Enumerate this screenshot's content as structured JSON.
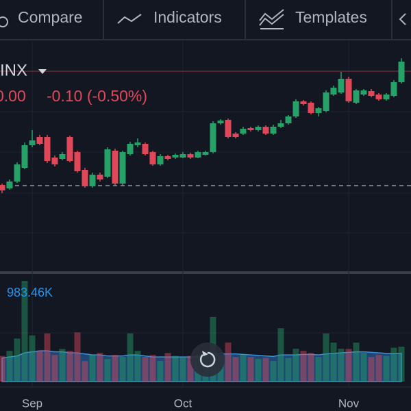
{
  "toolbar": {
    "items": [
      "Compare",
      "Indicators",
      "Templates"
    ]
  },
  "chart_data": {
    "type": "candlestick",
    "symbol": "INX",
    "legend_value": "0.00",
    "legend_change": "-0.10 (-0.50%)",
    "categories": [
      null,
      null,
      null,
      null,
      "Sep",
      null,
      null,
      null,
      null,
      null,
      null,
      null,
      null,
      null,
      null,
      null,
      null,
      null,
      null,
      null,
      null,
      null,
      null,
      null,
      "Oct",
      null,
      null,
      null,
      null,
      null,
      null,
      null,
      null,
      null,
      null,
      null,
      null,
      null,
      null,
      null,
      null,
      null,
      null,
      null,
      null,
      null,
      "Nov",
      null,
      null,
      null,
      null,
      null,
      null,
      null
    ],
    "open": [
      5.0,
      4.5,
      5.5,
      7.5,
      10.8,
      12.0,
      12.0,
      9.0,
      8.8,
      12.0,
      9.8,
      7.2,
      4.8,
      6.5,
      6.2,
      10.0,
      5.2,
      9.5,
      10.8,
      11.0,
      9.8,
      8.0,
      9.2,
      9.0,
      9.0,
      9.5,
      9.0,
      9.4,
      9.8,
      14.0,
      14.5,
      12.5,
      12.5,
      13.3,
      13.0,
      13.5,
      12.5,
      13.5,
      14.0,
      15.0,
      17.2,
      17.0,
      15.5,
      15.8,
      18.2,
      18.5,
      20.5,
      17.0,
      18.2,
      18.7,
      18.2,
      17.5,
      18.0,
      20.0
    ],
    "high": [
      5.2,
      5.8,
      8.3,
      11.2,
      13.0,
      12.3,
      12.3,
      9.3,
      9.8,
      12.2,
      10.0,
      7.5,
      6.8,
      6.8,
      10.5,
      10.3,
      10.0,
      11.3,
      11.8,
      11.2,
      10.0,
      9.5,
      9.4,
      9.6,
      9.8,
      9.7,
      10.0,
      10.0,
      14.3,
      14.6,
      14.7,
      12.7,
      13.5,
      13.5,
      13.7,
      13.7,
      13.8,
      14.5,
      15.2,
      17.5,
      17.4,
      17.2,
      16.4,
      18.8,
      19.5,
      21.5,
      20.8,
      19.0,
      19.0,
      19.0,
      18.4,
      18.4,
      20.3,
      23.5
    ],
    "low": [
      3.8,
      4.3,
      5.3,
      7.3,
      10.5,
      10.8,
      8.2,
      7.7,
      8.6,
      8.3,
      6.8,
      4.6,
      4.6,
      5.5,
      6.0,
      5.0,
      5.0,
      9.3,
      10.5,
      9.3,
      7.8,
      7.8,
      8.6,
      8.8,
      8.9,
      8.8,
      8.9,
      9.3,
      9.6,
      13.8,
      11.8,
      11.8,
      12.3,
      12.8,
      12.8,
      12.3,
      12.3,
      13.3,
      13.8,
      14.8,
      16.6,
      15.3,
      15.0,
      15.6,
      18.0,
      18.3,
      17.0,
      16.8,
      18.0,
      17.8,
      17.3,
      17.3,
      17.8,
      19.8
    ],
    "close": [
      4.2,
      5.5,
      8.0,
      10.8,
      11.5,
      11.0,
      8.5,
      8.0,
      9.5,
      8.5,
      7.0,
      4.8,
      6.5,
      5.8,
      10.2,
      5.2,
      9.8,
      11.0,
      11.2,
      9.5,
      8.0,
      9.2,
      8.8,
      9.4,
      9.5,
      9.0,
      9.8,
      9.8,
      14.0,
      14.4,
      12.0,
      12.0,
      13.2,
      13.0,
      13.5,
      12.5,
      13.5,
      14.0,
      15.0,
      17.2,
      16.8,
      15.5,
      16.2,
      18.5,
      19.2,
      20.5,
      17.2,
      18.8,
      18.8,
      18.0,
      17.5,
      18.2,
      20.0,
      23.0
    ],
    "ylim": [
      0,
      24
    ],
    "price_line": 21.6,
    "reference_line": 4.9,
    "up_color": "#26a269",
    "down_color": "#e0485a",
    "volume": [
      250,
      300,
      420,
      983.46,
      450,
      300,
      470,
      260,
      320,
      300,
      480,
      200,
      260,
      280,
      220,
      260,
      240,
      470,
      300,
      240,
      260,
      200,
      280,
      250,
      240,
      250,
      260,
      300,
      630,
      250,
      380,
      240,
      260,
      240,
      220,
      230,
      200,
      520,
      230,
      320,
      300,
      280,
      240,
      470,
      380,
      320,
      320,
      380,
      280,
      240,
      260,
      250,
      330,
      340
    ],
    "volume_ma": [
      230,
      240,
      250,
      280,
      290,
      300,
      300,
      290,
      290,
      280,
      280,
      270,
      260,
      260,
      250,
      250,
      250,
      260,
      260,
      250,
      240,
      240,
      240,
      240,
      240,
      240,
      240,
      250,
      270,
      270,
      270,
      270,
      265,
      260,
      255,
      250,
      245,
      260,
      260,
      260,
      265,
      265,
      260,
      270,
      275,
      280,
      285,
      290,
      290,
      285,
      280,
      275,
      275,
      275
    ],
    "volume_ylim": [
      0,
      1000
    ],
    "volume_label": "983.46K",
    "volume_ma_color": "#2a6fb8"
  }
}
